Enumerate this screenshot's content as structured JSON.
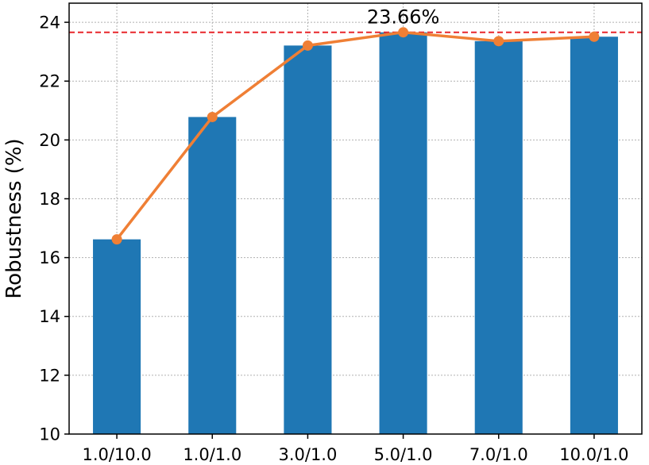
{
  "chart_data": {
    "type": "bar",
    "categories": [
      "1.0/10.0",
      "1.0/1.0",
      "3.0/1.0",
      "5.0/1.0",
      "7.0/1.0",
      "10.0/1.0"
    ],
    "series": [
      {
        "type": "bar",
        "values": [
          16.62,
          20.78,
          23.21,
          23.66,
          23.36,
          23.51
        ]
      },
      {
        "type": "line",
        "values": [
          16.62,
          20.78,
          23.21,
          23.66,
          23.36,
          23.51
        ]
      }
    ],
    "reference_line": {
      "value": 23.66,
      "style": "dashed"
    },
    "annotation": "23.66%",
    "ylabel": "Robustness (%)",
    "xlabel": "",
    "ylim": [
      10,
      24.65
    ],
    "yticks": [
      10,
      12,
      14,
      16,
      18,
      20,
      22,
      24
    ],
    "grid": true,
    "colors": {
      "bar": "#1f77b4",
      "line": "#ef7f35",
      "reference": "#e8262a"
    }
  }
}
